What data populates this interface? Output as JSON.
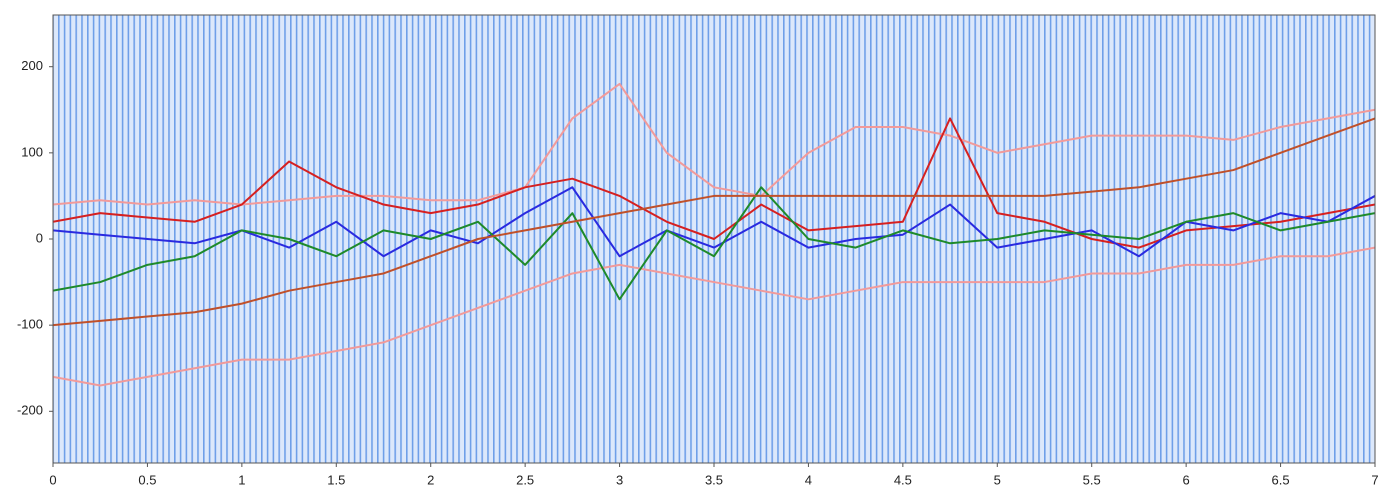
{
  "chart_data": {
    "type": "line",
    "x": [
      0,
      0.25,
      0.5,
      0.75,
      1,
      1.25,
      1.5,
      1.75,
      2,
      2.25,
      2.5,
      2.75,
      3,
      3.25,
      3.5,
      3.75,
      4,
      4.25,
      4.5,
      4.75,
      5,
      5.25,
      5.5,
      5.75,
      6,
      6.25,
      6.5,
      6.75,
      7
    ],
    "series": [
      {
        "color": "#f29a9a",
        "values": [
          40,
          45,
          40,
          45,
          40,
          45,
          50,
          50,
          45,
          45,
          60,
          140,
          180,
          100,
          60,
          50,
          100,
          130,
          130,
          120,
          100,
          110,
          120,
          120,
          120,
          115,
          130,
          140,
          150
        ]
      },
      {
        "color": "#f29a9a",
        "values": [
          -160,
          -170,
          -160,
          -150,
          -140,
          -140,
          -130,
          -120,
          -100,
          -80,
          -60,
          -40,
          -30,
          -40,
          -50,
          -60,
          -70,
          -60,
          -50,
          -50,
          -50,
          -50,
          -40,
          -40,
          -30,
          -30,
          -20,
          -20,
          -10
        ]
      },
      {
        "color": "#d62020",
        "values": [
          20,
          30,
          25,
          20,
          40,
          90,
          60,
          40,
          30,
          40,
          60,
          70,
          50,
          20,
          0,
          40,
          10,
          15,
          20,
          140,
          30,
          20,
          0,
          -10,
          10,
          15,
          20,
          30,
          40
        ]
      },
      {
        "color": "#2a2ae0",
        "values": [
          10,
          5,
          0,
          -5,
          10,
          -10,
          20,
          -20,
          10,
          -5,
          30,
          60,
          -20,
          10,
          -10,
          20,
          -10,
          0,
          5,
          40,
          -10,
          0,
          10,
          -20,
          20,
          10,
          30,
          20,
          50
        ]
      },
      {
        "color": "#1e8a2a",
        "values": [
          -60,
          -50,
          -30,
          -20,
          10,
          0,
          -20,
          10,
          0,
          20,
          -30,
          30,
          -70,
          10,
          -20,
          60,
          0,
          -10,
          10,
          -5,
          0,
          10,
          5,
          0,
          20,
          30,
          10,
          20,
          30
        ]
      },
      {
        "color": "#c0502a",
        "values": [
          -100,
          -95,
          -90,
          -85,
          -75,
          -60,
          -50,
          -40,
          -20,
          0,
          10,
          20,
          30,
          40,
          50,
          50,
          50,
          50,
          50,
          50,
          50,
          50,
          55,
          60,
          70,
          80,
          100,
          120,
          140
        ]
      }
    ],
    "xlim": [
      0,
      7
    ],
    "xticks": [
      0,
      0.5,
      1,
      1.5,
      2,
      2.5,
      3,
      3.5,
      4,
      4.5,
      5,
      5.5,
      6,
      6.5,
      7
    ],
    "ylim": [
      -260,
      260
    ],
    "yticks": [
      -200,
      -100,
      0,
      100,
      200
    ]
  }
}
